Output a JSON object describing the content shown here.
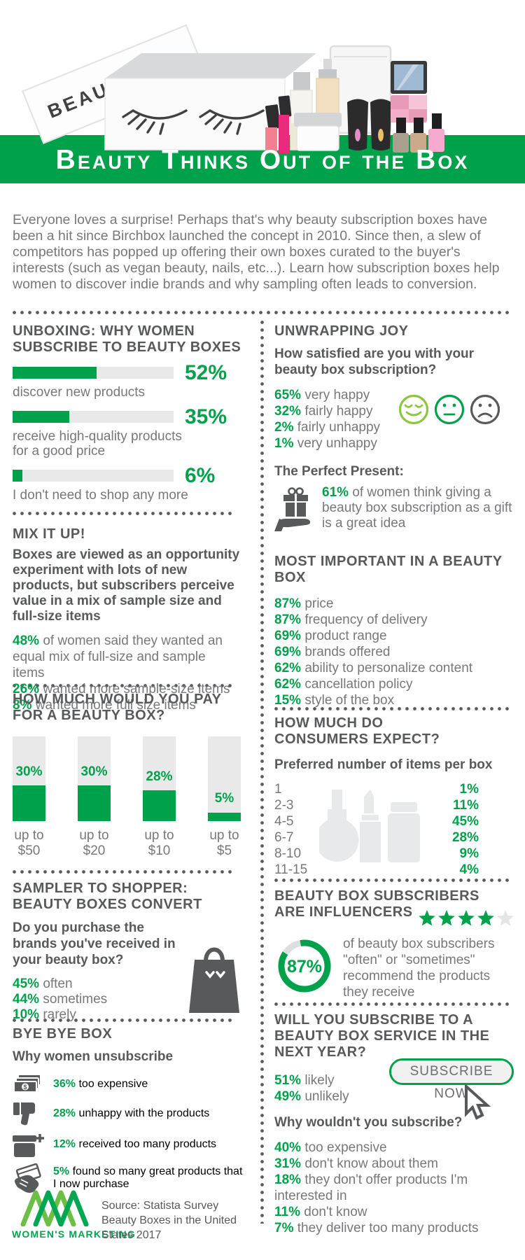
{
  "colors": {
    "green": "#00A14B",
    "light_green": "#8CC63F",
    "logo_light": "#6CBE45",
    "logo_dark": "#00A651",
    "dark_gray": "#58595B",
    "body_gray": "#77787B",
    "track_gray": "#E9E9EA",
    "star_off": "#E3E4E5"
  },
  "header": {
    "box_label": "BEAUTYBOX",
    "title": "Beauty Thinks Out of the Box"
  },
  "intro": "Everyone loves a surprise! Perhaps that's why beauty subscription boxes have been a hit since Birchbox launched the concept in 2010. Since then, a slew of competitors has popped up offering their own boxes curated to the buyer's interests (such as vegan beauty, nails, etc...). Learn how subscription boxes help women to discover indie brands and why sampling often leads to conversion.",
  "left": {
    "unboxing": {
      "title": "UNBOXING: WHY WOMEN SUBSCRIBE TO BEAUTY BOXES",
      "bars": [
        {
          "pct": "52%",
          "value": 52,
          "label": "discover new products"
        },
        {
          "pct": "35%",
          "value": 35,
          "label": "receive high-quality products for a good price"
        },
        {
          "pct": "6%",
          "value": 6,
          "label": "I don't need to shop any more"
        }
      ]
    },
    "mix": {
      "title": "MIX IT UP!",
      "intro": "Boxes are viewed as an opportunity experiment with lots of new products, but subscribers perceive value in a mix of sample size and full-size items",
      "items": [
        {
          "pct": "48%",
          "text": "of women said they wanted an equal mix of full-size and sample items"
        },
        {
          "pct": "26%",
          "text": "wanted more sample-size items"
        },
        {
          "pct": "8%",
          "text": "wanted more full size items"
        }
      ]
    },
    "pay": {
      "title": "HOW MUCH WOULD YOU PAY FOR A BEAUTY BOX?",
      "bars": [
        {
          "pct": "30%",
          "fill": 42,
          "label_line1": "up to",
          "label_line2": "$50"
        },
        {
          "pct": "30%",
          "fill": 42,
          "label_line1": "up to",
          "label_line2": "$20"
        },
        {
          "pct": "28%",
          "fill": 36,
          "label_line1": "up to",
          "label_line2": "$10"
        },
        {
          "pct": "5%",
          "fill": 10,
          "label_line1": "up to",
          "label_line2": "$5"
        }
      ]
    },
    "converts": {
      "title": "SAMPLER TO SHOPPER: BEAUTY BOXES CONVERT",
      "question": "Do you purchase the brands you've received in your beauty box?",
      "items": [
        {
          "pct": "45%",
          "text": "often"
        },
        {
          "pct": "44%",
          "text": "sometimes"
        },
        {
          "pct": "10%",
          "text": "rarely"
        }
      ]
    },
    "bye": {
      "title": "BYE BYE BOX",
      "subtitle": "Why women unsubscribe",
      "items": [
        {
          "pct": "36%",
          "text": "too expensive",
          "icon": "cash-icon"
        },
        {
          "pct": "28%",
          "text": "unhappy with the products",
          "icon": "thumbs-down-icon"
        },
        {
          "pct": "12%",
          "text": "received too many products",
          "icon": "box-plus-icon"
        },
        {
          "pct": "5%",
          "text": "found so many great products that I now purchase",
          "icon": "hand-card-icon"
        }
      ]
    },
    "footer": {
      "logo_text": "WOMEN'S MARKETING",
      "source": "Source: Statista Survey Beauty Boxes in the United States 2017"
    }
  },
  "right": {
    "joy": {
      "title": "UNWRAPPING JOY",
      "question": "How satisfied are you with your beauty box subscription?",
      "items": [
        {
          "pct": "65%",
          "text": "very happy"
        },
        {
          "pct": "32%",
          "text": "fairly happy"
        },
        {
          "pct": "2%",
          "text": "fairly unhappy"
        },
        {
          "pct": "1%",
          "text": "very unhappy"
        }
      ],
      "faces": [
        "happy-face-icon",
        "neutral-face-icon",
        "sad-face-icon"
      ],
      "perfect": {
        "title": "The Perfect Present:",
        "pct": "61%",
        "text": "of women think giving a beauty box subscription as a gift is a great idea",
        "icon": "gift-in-hand-icon"
      }
    },
    "important": {
      "title": "MOST IMPORTANT IN A BEAUTY BOX",
      "items": [
        {
          "pct": "87%",
          "text": "price"
        },
        {
          "pct": "87%",
          "text": "frequency of delivery"
        },
        {
          "pct": "69%",
          "text": "product range"
        },
        {
          "pct": "69%",
          "text": "brands offered"
        },
        {
          "pct": "62%",
          "text": "ability to personalize content"
        },
        {
          "pct": "62%",
          "text": "cancellation policy"
        },
        {
          "pct": "15%",
          "text": "style of the box"
        }
      ]
    },
    "expect": {
      "title": "HOW MUCH DO CONSUMERS EXPECT?",
      "subtitle": "Preferred number of items per box",
      "rows": [
        {
          "range": "1",
          "pct": "1%"
        },
        {
          "range": "2-3",
          "pct": "11%"
        },
        {
          "range": "4-5",
          "pct": "45%"
        },
        {
          "range": "6-7",
          "pct": "28%"
        },
        {
          "range": "8-10",
          "pct": "9%"
        },
        {
          "range": "11-15",
          "pct": "4%"
        }
      ]
    },
    "influencers": {
      "title": "BEAUTY BOX SUBSCRIBERS ARE INFLUENCERS",
      "stars_filled": 4,
      "stars_total": 5,
      "donut_pct": "87%",
      "donut_value": 87,
      "text": "of beauty box subscribers \"often\" or \"sometimes\" recommend the products they receive"
    },
    "subscribe": {
      "title": "WILL YOU SUBSCRIBE TO A BEAUTY BOX SERVICE IN THE NEXT YEAR?",
      "items": [
        {
          "pct": "51%",
          "text": "likely"
        },
        {
          "pct": "49%",
          "text": "unlikely"
        }
      ],
      "button_label": "SUBSCRIBE NOW",
      "why_title": "Why wouldn't you subscribe?",
      "why_items": [
        {
          "pct": "40%",
          "text": "too expensive"
        },
        {
          "pct": "31%",
          "text": "don't know about them"
        },
        {
          "pct": "18%",
          "text": "they don't offer products I'm interested in"
        },
        {
          "pct": "11%",
          "text": "don't know"
        },
        {
          "pct": "7%",
          "text": "they deliver too many products"
        }
      ]
    }
  },
  "chart_data": [
    {
      "type": "bar",
      "orientation": "horizontal",
      "title": "Unboxing: why women subscribe to beauty boxes",
      "categories": [
        "discover new products",
        "receive high-quality products for a good price",
        "I don't need to shop any more"
      ],
      "values": [
        52,
        35,
        6
      ],
      "unit": "%"
    },
    {
      "type": "bar",
      "title": "Mix it up! preferred mix",
      "categories": [
        "equal mix of full-size and sample items",
        "more sample-size items",
        "more full size items"
      ],
      "values": [
        48,
        26,
        8
      ],
      "unit": "%"
    },
    {
      "type": "bar",
      "orientation": "vertical",
      "title": "How much would you pay for a beauty box?",
      "categories": [
        "up to $50",
        "up to $20",
        "up to $10",
        "up to $5"
      ],
      "values": [
        30,
        30,
        28,
        5
      ],
      "unit": "%"
    },
    {
      "type": "bar",
      "title": "How satisfied are you with your beauty box subscription?",
      "categories": [
        "very happy",
        "fairly happy",
        "fairly unhappy",
        "very unhappy"
      ],
      "values": [
        65,
        32,
        2,
        1
      ],
      "unit": "%"
    },
    {
      "type": "bar",
      "title": "The perfect present",
      "categories": [
        "women who think giving a beauty box subscription as a gift is a great idea"
      ],
      "values": [
        61
      ],
      "unit": "%"
    },
    {
      "type": "bar",
      "title": "Most important in a beauty box",
      "categories": [
        "price",
        "frequency of delivery",
        "product range",
        "brands offered",
        "ability to personalize content",
        "cancellation policy",
        "style of the box"
      ],
      "values": [
        87,
        87,
        69,
        69,
        62,
        62,
        15
      ],
      "unit": "%"
    },
    {
      "type": "bar",
      "title": "Preferred number of items per box",
      "categories": [
        "1",
        "2-3",
        "4-5",
        "6-7",
        "8-10",
        "11-15"
      ],
      "values": [
        1,
        11,
        45,
        28,
        9,
        4
      ],
      "unit": "%"
    },
    {
      "type": "bar",
      "title": "Do you purchase the brands you've received in your beauty box?",
      "categories": [
        "often",
        "sometimes",
        "rarely"
      ],
      "values": [
        45,
        44,
        10
      ],
      "unit": "%"
    },
    {
      "type": "pie",
      "title": "Beauty box subscribers are influencers",
      "categories": [
        "often or sometimes recommend the products they receive",
        "other"
      ],
      "values": [
        87,
        13
      ],
      "unit": "%"
    },
    {
      "type": "bar",
      "title": "Why women unsubscribe",
      "categories": [
        "too expensive",
        "unhappy with the products",
        "received too many products",
        "found so many great products that I now purchase"
      ],
      "values": [
        36,
        28,
        12,
        5
      ],
      "unit": "%"
    },
    {
      "type": "bar",
      "title": "Will you subscribe to a beauty box service in the next year?",
      "categories": [
        "likely",
        "unlikely"
      ],
      "values": [
        51,
        49
      ],
      "unit": "%"
    },
    {
      "type": "bar",
      "title": "Why wouldn't you subscribe?",
      "categories": [
        "too expensive",
        "don't know about them",
        "they don't offer products I'm interested in",
        "don't know",
        "they deliver too many products"
      ],
      "values": [
        40,
        31,
        18,
        11,
        7
      ],
      "unit": "%"
    }
  ]
}
